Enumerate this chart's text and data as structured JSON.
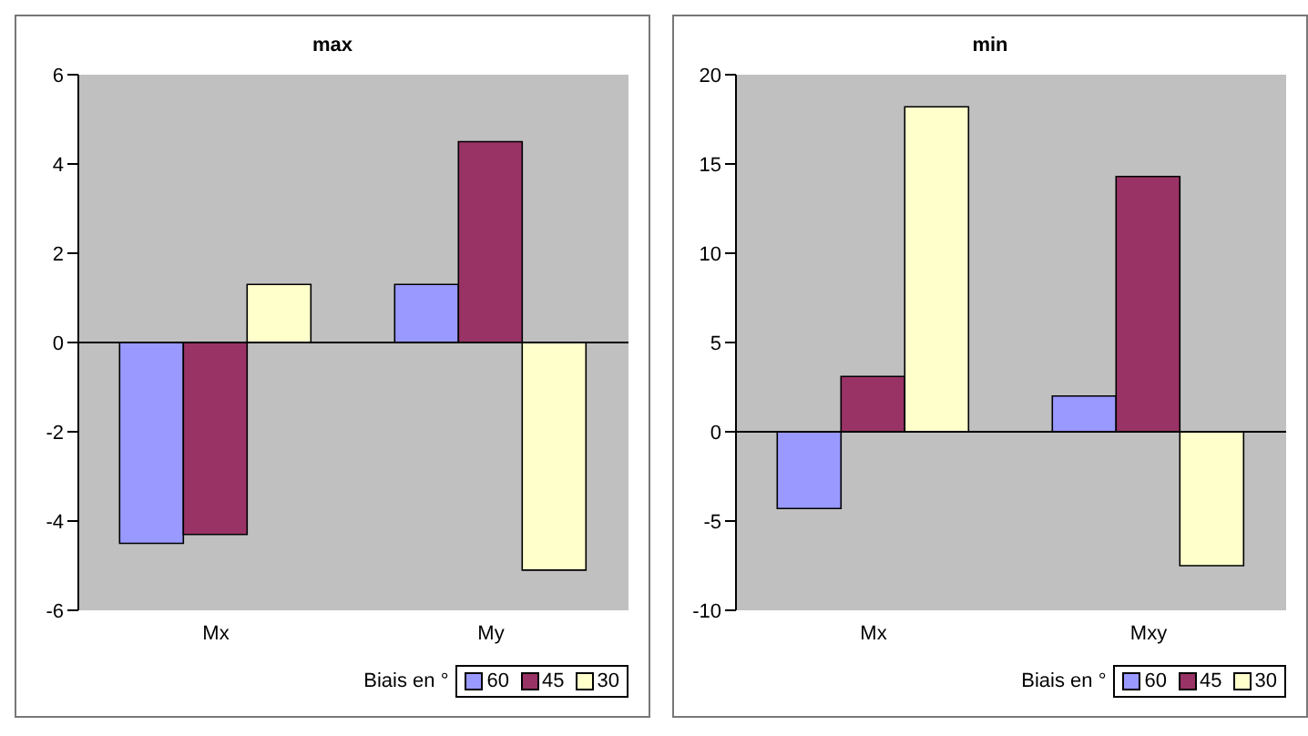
{
  "chart_data": [
    {
      "type": "bar",
      "title": "max",
      "categories": [
        "Mx",
        "My"
      ],
      "legend_title": "Biais en °",
      "legend": "bottom right",
      "grid": false,
      "ref_lines": [
        {
          "axis": "y",
          "value": 0,
          "color": "#000000"
        }
      ],
      "ylim": [
        -6,
        6
      ],
      "yticks": [
        -6,
        -4,
        -2,
        0,
        2,
        4,
        6
      ],
      "series": [
        {
          "name": "60",
          "color": "#9999ff",
          "values": [
            -4.5,
            1.3
          ]
        },
        {
          "name": "45",
          "color": "#993366",
          "values": [
            -4.3,
            4.5
          ]
        },
        {
          "name": "30",
          "color": "#ffffcc",
          "values": [
            1.3,
            -5.1
          ]
        }
      ]
    },
    {
      "type": "bar",
      "title": "min",
      "categories": [
        "Mx",
        "Mxy"
      ],
      "legend_title": "Biais en °",
      "legend": "bottom right",
      "grid": false,
      "ref_lines": [
        {
          "axis": "y",
          "value": 0,
          "color": "#000000"
        }
      ],
      "ylim": [
        -10,
        20
      ],
      "yticks": [
        -10,
        -5,
        0,
        5,
        10,
        15,
        20
      ],
      "series": [
        {
          "name": "60",
          "color": "#9999ff",
          "values": [
            -4.3,
            2
          ]
        },
        {
          "name": "45",
          "color": "#993366",
          "values": [
            3.1,
            14.3
          ]
        },
        {
          "name": "30",
          "color": "#ffffcc",
          "values": [
            18.2,
            -7.5
          ]
        }
      ]
    }
  ]
}
